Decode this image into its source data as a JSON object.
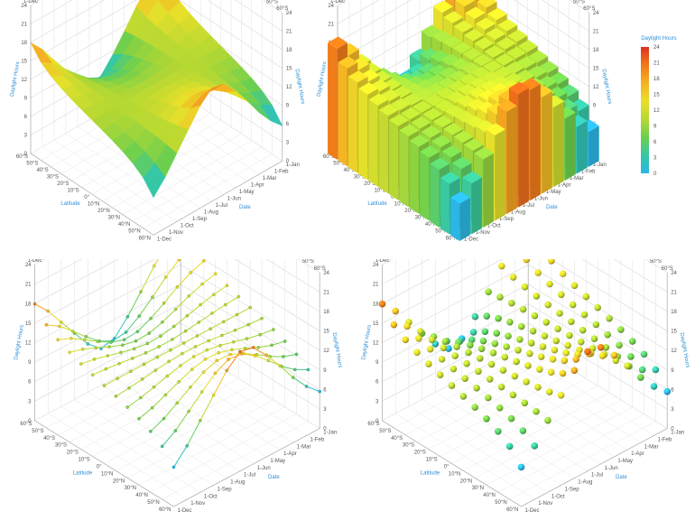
{
  "chart_data": {
    "type": "surface3d",
    "z_title": "Daylight Hours",
    "x_title": "Date",
    "y_title": "Latitude",
    "dates": [
      "1-Jan",
      "1-Feb",
      "1-Mar",
      "1-Apr",
      "1-May",
      "1-Jun",
      "1-Jul",
      "1-Aug",
      "1-Sep",
      "1-Oct",
      "1-Nov",
      "1-Dec"
    ],
    "latitudes": [
      "60°S",
      "50°S",
      "40°S",
      "30°S",
      "20°S",
      "10°S",
      "0°",
      "10°N",
      "20°N",
      "30°N",
      "40°N",
      "50°N",
      "60°N"
    ],
    "lat_values": [
      -60,
      -50,
      -40,
      -30,
      -20,
      -10,
      0,
      10,
      20,
      30,
      40,
      50,
      60
    ],
    "z_ticks": [
      0,
      3,
      6,
      9,
      12,
      15,
      18,
      21,
      24
    ],
    "zlim": [
      0,
      24
    ],
    "legend": {
      "title": "Daylight Hours",
      "ticks": [
        "24",
        "21",
        "18",
        "15",
        "12",
        "9",
        "6",
        "3",
        "0"
      ],
      "colors": [
        "#e0301e",
        "#f07a1a",
        "#f4b223",
        "#e8e02a",
        "#b6d832",
        "#6ccf4e",
        "#35c7a5",
        "#2bb6e6"
      ]
    },
    "panels": [
      {
        "kind": "surface"
      },
      {
        "kind": "bars"
      },
      {
        "kind": "lines"
      },
      {
        "kind": "spheres"
      }
    ]
  }
}
